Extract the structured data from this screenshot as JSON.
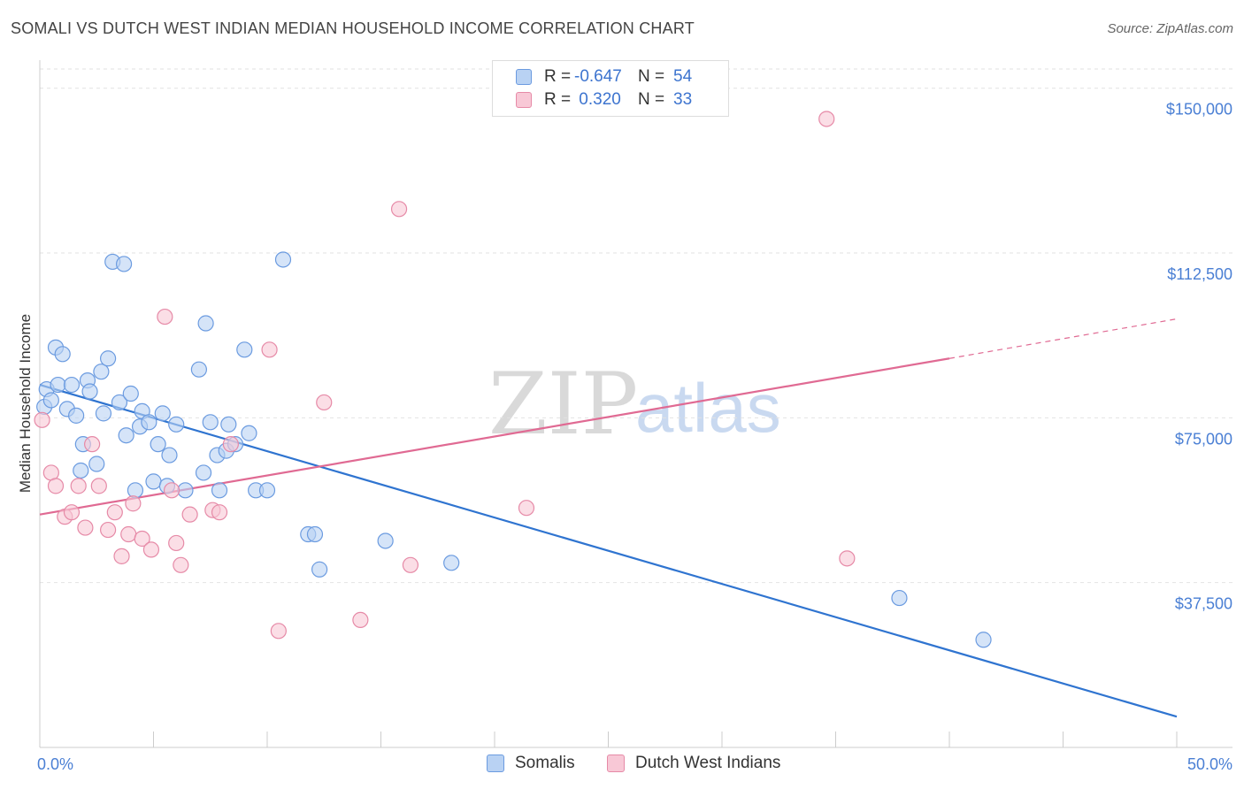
{
  "header": {
    "title": "SOMALI VS DUTCH WEST INDIAN MEDIAN HOUSEHOLD INCOME CORRELATION CHART",
    "source": "Source: ZipAtlas.com"
  },
  "watermark": {
    "zip": "ZIP",
    "atlas": "atlas"
  },
  "legend": {
    "rows": [
      {
        "r_label": "R =",
        "r_value": "-0.647",
        "n_label": "N =",
        "n_value": "54"
      },
      {
        "r_label": "R =",
        "r_value": " 0.320",
        "n_label": "N =",
        "n_value": "33"
      }
    ]
  },
  "colors": {
    "somali_fill": "#b9d2f3",
    "somali_stroke": "#6b9be0",
    "somali_line": "#2f74d0",
    "dwi_fill": "#f8c8d6",
    "dwi_stroke": "#e68aa7",
    "dwi_line": "#e06a93",
    "grid": "#e2e2e2",
    "tick_label": "#4a7fd4"
  },
  "chart_data": {
    "type": "scatter",
    "ylabel": "Median Household Income",
    "xlim": [
      0,
      50
    ],
    "ylim": [
      0,
      160000
    ],
    "x_tick_labels": [
      "0.0%",
      "50.0%"
    ],
    "y_ticks": [
      37500,
      75000,
      112500,
      150000
    ],
    "y_tick_labels": [
      "$37,500",
      "$75,000",
      "$112,500",
      "$150,000"
    ],
    "grid": "horizontal dashed",
    "legend_position": "top-center",
    "series": [
      {
        "name": "Somalis",
        "points": [
          [
            0.2,
            77500
          ],
          [
            0.3,
            81500
          ],
          [
            0.5,
            79000
          ],
          [
            0.7,
            91000
          ],
          [
            0.8,
            82500
          ],
          [
            1.0,
            89500
          ],
          [
            1.2,
            77000
          ],
          [
            1.4,
            82500
          ],
          [
            1.6,
            75500
          ],
          [
            1.8,
            63000
          ],
          [
            1.9,
            69000
          ],
          [
            2.1,
            83500
          ],
          [
            2.2,
            81000
          ],
          [
            2.5,
            64500
          ],
          [
            2.7,
            85500
          ],
          [
            2.8,
            76000
          ],
          [
            3.0,
            88500
          ],
          [
            3.2,
            110500
          ],
          [
            3.5,
            78500
          ],
          [
            3.7,
            110000
          ],
          [
            3.8,
            71000
          ],
          [
            4.0,
            80500
          ],
          [
            4.2,
            58500
          ],
          [
            4.4,
            73000
          ],
          [
            4.5,
            76500
          ],
          [
            4.8,
            74000
          ],
          [
            5.0,
            60500
          ],
          [
            5.2,
            69000
          ],
          [
            5.4,
            76000
          ],
          [
            5.6,
            59500
          ],
          [
            5.7,
            66500
          ],
          [
            6.0,
            73500
          ],
          [
            6.4,
            58500
          ],
          [
            7.0,
            86000
          ],
          [
            7.2,
            62500
          ],
          [
            7.3,
            96500
          ],
          [
            7.5,
            74000
          ],
          [
            7.8,
            66500
          ],
          [
            7.9,
            58500
          ],
          [
            8.2,
            67500
          ],
          [
            8.3,
            73500
          ],
          [
            8.6,
            69000
          ],
          [
            9.0,
            90500
          ],
          [
            9.2,
            71500
          ],
          [
            9.5,
            58500
          ],
          [
            10.0,
            58500
          ],
          [
            10.7,
            111000
          ],
          [
            11.8,
            48500
          ],
          [
            12.1,
            48500
          ],
          [
            12.3,
            40500
          ],
          [
            15.2,
            47000
          ],
          [
            18.1,
            42000
          ],
          [
            37.8,
            34000
          ],
          [
            41.5,
            24500
          ]
        ],
        "trend": {
          "x": [
            0,
            50
          ],
          "y": [
            82500,
            7000
          ]
        }
      },
      {
        "name": "Dutch West Indians",
        "points": [
          [
            0.1,
            74500
          ],
          [
            0.5,
            62500
          ],
          [
            0.7,
            59500
          ],
          [
            1.1,
            52500
          ],
          [
            1.4,
            53500
          ],
          [
            1.7,
            59500
          ],
          [
            2.0,
            50000
          ],
          [
            2.3,
            69000
          ],
          [
            2.6,
            59500
          ],
          [
            3.0,
            49500
          ],
          [
            3.3,
            53500
          ],
          [
            3.6,
            43500
          ],
          [
            3.9,
            48500
          ],
          [
            4.1,
            55500
          ],
          [
            4.5,
            47500
          ],
          [
            4.9,
            45000
          ],
          [
            5.5,
            98000
          ],
          [
            5.8,
            58500
          ],
          [
            6.0,
            46500
          ],
          [
            6.2,
            41500
          ],
          [
            6.6,
            53000
          ],
          [
            7.6,
            54000
          ],
          [
            7.9,
            53500
          ],
          [
            8.4,
            69000
          ],
          [
            10.5,
            26500
          ],
          [
            10.1,
            90500
          ],
          [
            12.5,
            78500
          ],
          [
            14.1,
            29000
          ],
          [
            15.8,
            122500
          ],
          [
            16.3,
            41500
          ],
          [
            21.4,
            54500
          ],
          [
            34.6,
            143000
          ],
          [
            35.5,
            43000
          ]
        ],
        "trend": {
          "x": [
            0,
            40
          ],
          "y": [
            53000,
            88500
          ]
        },
        "trend_extension": {
          "x": [
            40,
            50
          ],
          "y": [
            88500,
            97500
          ]
        }
      }
    ]
  },
  "bottom_legend": [
    {
      "label": "Somalis"
    },
    {
      "label": "Dutch West Indians"
    }
  ]
}
